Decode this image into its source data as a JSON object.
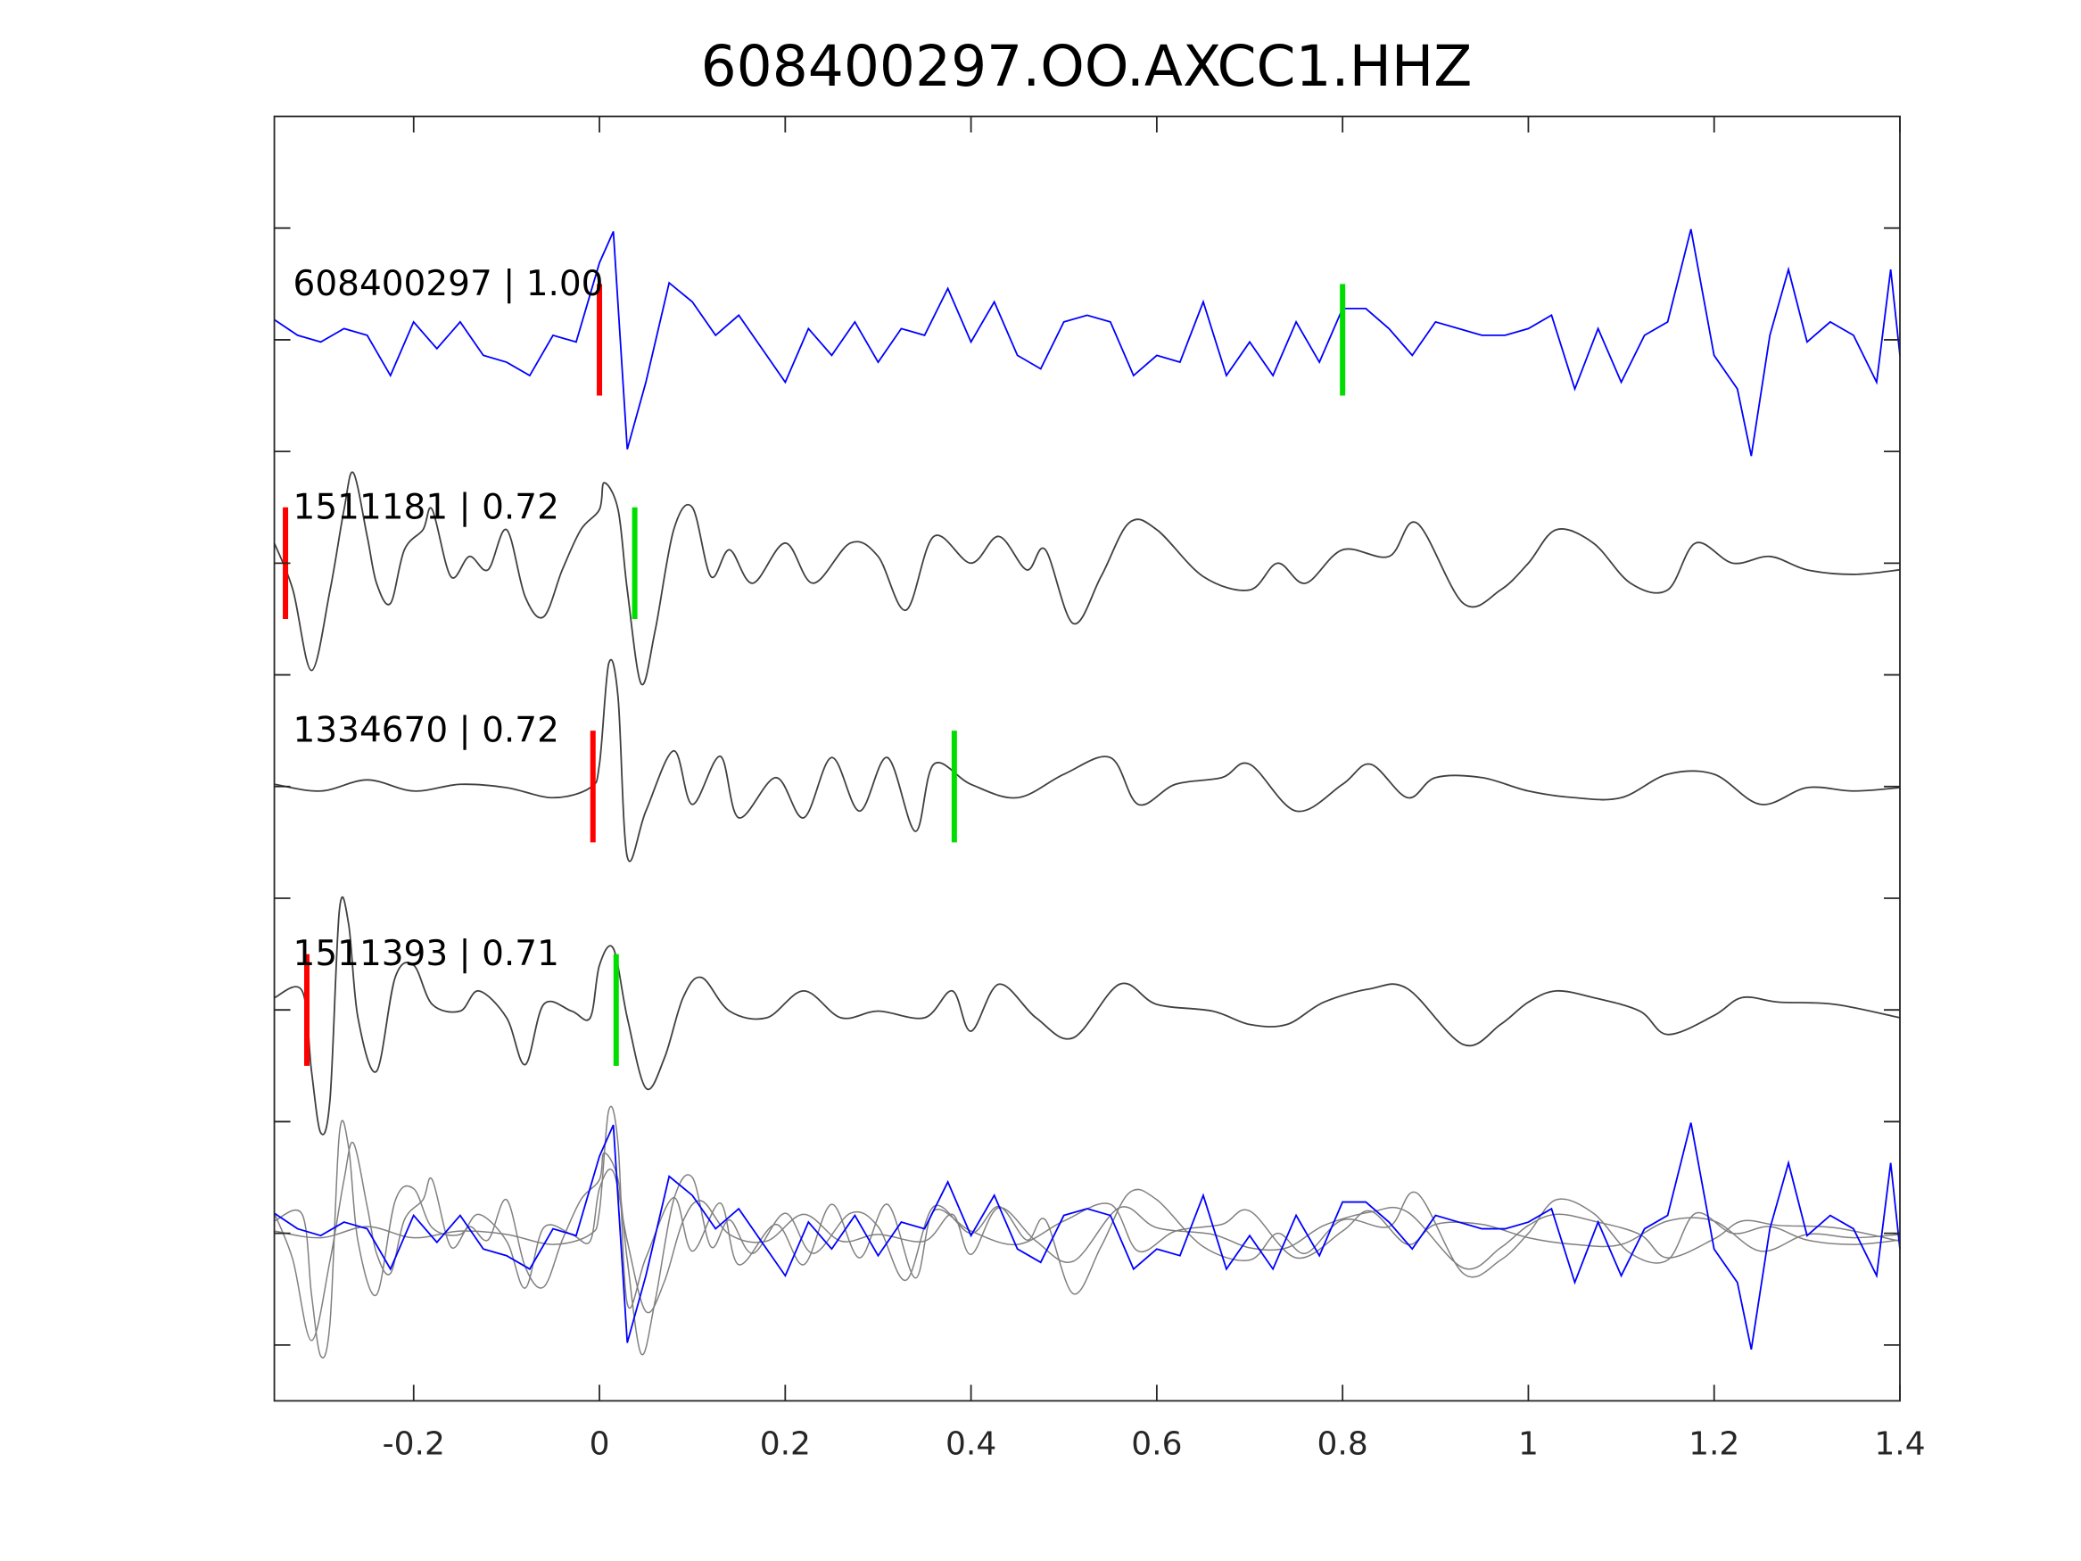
{
  "chart_data": {
    "type": "line",
    "title": "608400297.OO.AXCC1.HHZ",
    "xlabel": "",
    "ylabel": "",
    "xlim": [
      -0.35,
      1.4
    ],
    "ylim": [
      -11.5,
      0
    ],
    "xticks": [
      -0.2,
      0,
      0.2,
      0.4,
      0.6,
      0.8,
      1,
      1.2,
      1.4
    ],
    "xtick_labels": [
      "-0.2",
      "0",
      "0.2",
      "0.4",
      "0.6",
      "0.8",
      "1",
      "1.2",
      "1.4"
    ],
    "yticks": [
      -1,
      -2,
      -3,
      -4,
      -5,
      -6,
      -7,
      -8,
      -9,
      -10,
      -11
    ],
    "grid": false,
    "colors": {
      "master": "#0000ff",
      "other": "#404040",
      "overlay": "#808080",
      "p_pick": "#ff0000",
      "s_pick": "#00dd00"
    },
    "series": [
      {
        "name": "608400297",
        "label": "608400297 | 1.00",
        "offset": -2,
        "color": "#0000ff",
        "p_pick": 0.0,
        "s_pick": 0.8,
        "t": [
          -0.35,
          -0.325,
          -0.3,
          -0.275,
          -0.25,
          -0.225,
          -0.2,
          -0.175,
          -0.15,
          -0.125,
          -0.1,
          -0.075,
          -0.05,
          -0.025,
          0,
          0.015,
          0.03,
          0.05,
          0.075,
          0.1,
          0.125,
          0.15,
          0.175,
          0.2,
          0.225,
          0.25,
          0.275,
          0.3,
          0.325,
          0.35,
          0.375,
          0.4,
          0.425,
          0.45,
          0.475,
          0.5,
          0.525,
          0.55,
          0.575,
          0.6,
          0.625,
          0.65,
          0.675,
          0.7,
          0.725,
          0.75,
          0.775,
          0.8,
          0.825,
          0.85,
          0.875,
          0.9,
          0.925,
          0.95,
          0.975,
          1.0,
          1.025,
          1.05,
          1.075,
          1.1,
          1.125,
          1.15,
          1.175,
          1.2,
          1.225,
          1.24,
          1.26,
          1.28,
          1.3,
          1.325,
          1.35,
          1.375,
          1.39,
          1.4
        ],
        "amp": [
          0.18,
          0.04,
          -0.02,
          0.1,
          0.04,
          -0.32,
          0.16,
          -0.08,
          0.16,
          -0.14,
          -0.2,
          -0.32,
          0.04,
          -0.02,
          0.69,
          0.97,
          -0.98,
          -0.38,
          0.51,
          0.34,
          0.04,
          0.22,
          -0.08,
          -0.38,
          0.1,
          -0.14,
          0.16,
          -0.2,
          0.1,
          0.04,
          0.46,
          -0.02,
          0.34,
          -0.14,
          -0.26,
          0.16,
          0.22,
          0.16,
          -0.32,
          -0.14,
          -0.2,
          0.34,
          -0.32,
          -0.02,
          -0.32,
          0.16,
          -0.2,
          0.28,
          0.28,
          0.1,
          -0.14,
          0.16,
          0.1,
          0.04,
          0.04,
          0.1,
          0.22,
          -0.44,
          0.1,
          -0.38,
          0.04,
          0.16,
          0.99,
          -0.14,
          -0.44,
          -1.04,
          0.04,
          0.63,
          -0.02,
          0.16,
          0.04,
          -0.38,
          0.63,
          -0.14
        ]
      },
      {
        "name": "1511181",
        "label": "1511181 | 0.72",
        "offset": -4,
        "color": "#404040",
        "p_pick": -0.338,
        "s_pick": 0.038,
        "t": [
          -0.35,
          -0.33,
          -0.31,
          -0.29,
          -0.275,
          -0.265,
          -0.25,
          -0.24,
          -0.225,
          -0.21,
          -0.19,
          -0.18,
          -0.16,
          -0.14,
          -0.12,
          -0.1,
          -0.08,
          -0.06,
          -0.04,
          -0.02,
          0,
          0.005,
          0.02,
          0.03,
          0.045,
          0.06,
          0.08,
          0.1,
          0.12,
          0.14,
          0.165,
          0.2,
          0.23,
          0.27,
          0.3,
          0.33,
          0.36,
          0.4,
          0.43,
          0.46,
          0.48,
          0.51,
          0.54,
          0.57,
          0.6,
          0.65,
          0.7,
          0.73,
          0.76,
          0.8,
          0.85,
          0.88,
          0.93,
          0.97,
          1.0,
          1.03,
          1.07,
          1.11,
          1.15,
          1.18,
          1.22,
          1.26,
          1.3,
          1.35,
          1.4
        ],
        "amp": [
          0.18,
          -0.24,
          -0.96,
          -0.24,
          0.48,
          0.81,
          0.24,
          -0.18,
          -0.36,
          0.12,
          0.3,
          0.48,
          -0.12,
          0.06,
          -0.06,
          0.3,
          -0.3,
          -0.48,
          -0.06,
          0.3,
          0.48,
          0.72,
          0.48,
          -0.24,
          -1.08,
          -0.6,
          0.3,
          0.5,
          -0.12,
          0.12,
          -0.18,
          0.18,
          -0.18,
          0.18,
          0.06,
          -0.42,
          0.24,
          0,
          0.24,
          -0.06,
          0.12,
          -0.54,
          -0.12,
          0.36,
          0.3,
          -0.12,
          -0.24,
          0,
          -0.18,
          0.12,
          0.06,
          0.36,
          -0.36,
          -0.24,
          0,
          0.3,
          0.18,
          -0.18,
          -0.24,
          0.18,
          0,
          0.06,
          -0.06,
          -0.1,
          -0.06
        ]
      },
      {
        "name": "1334670",
        "label": "1334670 | 0.72",
        "offset": -6,
        "color": "#404040",
        "p_pick": -0.007,
        "s_pick": 0.382,
        "t": [
          -0.35,
          -0.3,
          -0.25,
          -0.2,
          -0.15,
          -0.1,
          -0.05,
          -0.01,
          0,
          0.01,
          0.02,
          0.03,
          0.05,
          0.08,
          0.1,
          0.13,
          0.15,
          0.19,
          0.22,
          0.25,
          0.28,
          0.31,
          0.34,
          0.36,
          0.4,
          0.45,
          0.5,
          0.55,
          0.58,
          0.62,
          0.67,
          0.7,
          0.75,
          0.8,
          0.83,
          0.87,
          0.9,
          0.95,
          1.0,
          1.05,
          1.1,
          1.15,
          1.2,
          1.25,
          1.3,
          1.35,
          1.4
        ],
        "amp": [
          0.02,
          -0.04,
          0.06,
          -0.04,
          0.02,
          -0.01,
          -0.1,
          -0.01,
          0.2,
          1.1,
          0.8,
          -0.63,
          -0.22,
          0.32,
          -0.16,
          0.27,
          -0.28,
          0.08,
          -0.28,
          0.26,
          -0.22,
          0.26,
          -0.4,
          0.2,
          0.02,
          -0.1,
          0.11,
          0.26,
          -0.16,
          0.02,
          0.08,
          0.2,
          -0.22,
          0.02,
          0.2,
          -0.1,
          0.08,
          0.08,
          -0.04,
          -0.1,
          -0.1,
          0.11,
          0.11,
          -0.16,
          -0.01,
          -0.04,
          -0.01
        ]
      },
      {
        "name": "1511393",
        "label": "1511393 | 0.71",
        "offset": -8,
        "color": "#404040",
        "p_pick": -0.315,
        "s_pick": 0.018,
        "t": [
          -0.35,
          -0.32,
          -0.31,
          -0.3,
          -0.29,
          -0.28,
          -0.27,
          -0.26,
          -0.24,
          -0.22,
          -0.2,
          -0.18,
          -0.15,
          -0.13,
          -0.1,
          -0.08,
          -0.06,
          -0.03,
          -0.01,
          0,
          0.015,
          0.03,
          0.05,
          0.07,
          0.09,
          0.11,
          0.14,
          0.18,
          0.22,
          0.26,
          0.3,
          0.35,
          0.38,
          0.4,
          0.43,
          0.47,
          0.51,
          0.56,
          0.6,
          0.66,
          0.7,
          0.74,
          0.78,
          0.83,
          0.87,
          0.93,
          0.97,
          1.0,
          1.03,
          1.07,
          1.12,
          1.15,
          1.2,
          1.23,
          1.27,
          1.33,
          1.4
        ],
        "amp": [
          0.11,
          0.17,
          -0.55,
          -1.1,
          -0.79,
          0.89,
          0.77,
          -0.07,
          -0.55,
          0.29,
          0.4,
          0.05,
          -0.01,
          0.17,
          -0.07,
          -0.49,
          0.05,
          -0.01,
          -0.07,
          0.4,
          0.55,
          -0.07,
          -0.7,
          -0.43,
          0.11,
          0.29,
          -0.01,
          -0.07,
          0.17,
          -0.07,
          -0.01,
          -0.07,
          0.17,
          -0.19,
          0.23,
          -0.07,
          -0.25,
          0.23,
          0.05,
          -0.01,
          -0.13,
          -0.13,
          0.07,
          0.19,
          0.19,
          -0.31,
          -0.13,
          0.07,
          0.17,
          0.11,
          -0.01,
          -0.22,
          -0.05,
          0.11,
          0.07,
          0.05,
          -0.07
        ]
      }
    ],
    "overlay_offset": -10
  }
}
